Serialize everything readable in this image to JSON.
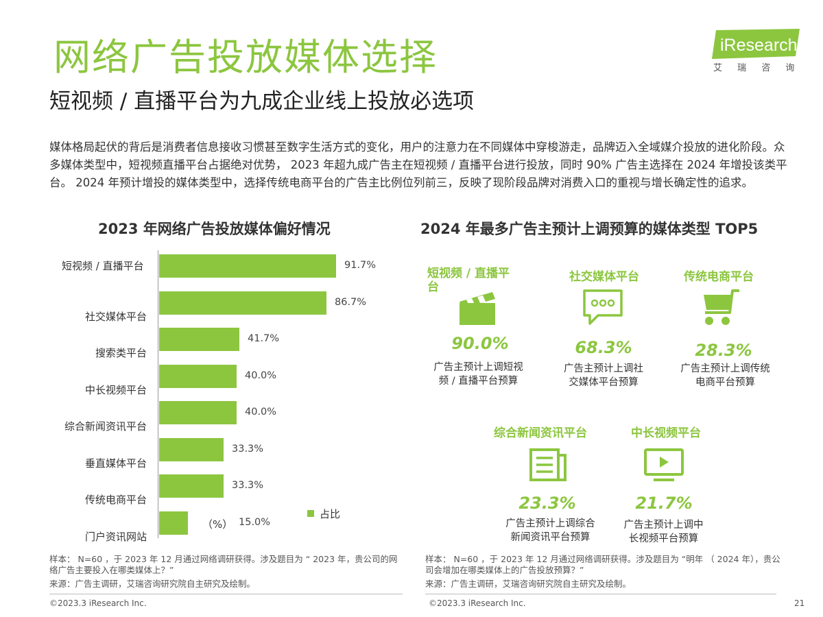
{
  "logo": {
    "brand": "iResearch",
    "cn": "艾 瑞 咨 询"
  },
  "header": {
    "title": "网络广告投放媒体选择",
    "subtitle": "短视频 / 直播平台为九成企业线上投放必选项",
    "intro": "媒体格局起伏的背后是消费者信息接收习惯甚至数字生活方式的变化，用户的注意力在不同媒体中穿梭游走，品牌迈入全域媒介投放的进化阶段。众多媒体类型中，短视频直播平台占据绝对优势， 2023 年超九成广告主在短视频 / 直播平台进行投放，同时 90% 广告主选择在 2024 年增投该类平台。 2024 年预计增投的媒体类型中，选择传统电商平台的广告主比例位列前三，反映了现阶段品牌对消费入口的重视与增长确定性的追求。"
  },
  "colors": {
    "accent": "#8cc63f"
  },
  "chart_data": {
    "type": "bar",
    "orientation": "horizontal",
    "title": "2023 年网络广告投放媒体偏好情况",
    "categories": [
      "短视频 / 直播平台",
      "社交媒体平台",
      "搜索类平台",
      "中长视频平台",
      "综合新闻资讯平台",
      "垂直媒体平台",
      "传统电商平台",
      "门户资讯网站"
    ],
    "values": [
      91.7,
      86.7,
      41.7,
      40.0,
      40.0,
      33.3,
      33.3,
      15.0
    ],
    "value_labels": [
      "91.7%",
      "86.7%",
      "41.7%",
      "40.0%",
      "40.0%",
      "33.3%",
      "33.3%",
      "15.0%"
    ],
    "series": [
      {
        "name": "占比",
        "values": [
          91.7,
          86.7,
          41.7,
          40.0,
          40.0,
          33.3,
          33.3,
          15.0
        ]
      }
    ],
    "unit": "（%）",
    "xlim": [
      0,
      100
    ],
    "grid": false,
    "legend": "bottom-right"
  },
  "top5": {
    "title": "2024 年最多广告主预计上调预算的媒体类型 TOP5",
    "items": [
      {
        "name": "短视频 / 直播平台",
        "pct": "90.0%",
        "desc1": "广告主预计上调短视",
        "desc2": "频 / 直播平台预算",
        "icon": "clapperboard-icon"
      },
      {
        "name": "社交媒体平台",
        "pct": "68.3%",
        "desc1": "广告主预计上调社",
        "desc2": "交媒体平台预算",
        "icon": "chat-bubble-icon"
      },
      {
        "name": "传统电商平台",
        "pct": "28.3%",
        "desc1": "广告主预计上调传统",
        "desc2": "电商平台预算",
        "icon": "shopping-cart-icon"
      },
      {
        "name": "综合新闻资讯平台",
        "pct": "23.3%",
        "desc1": "广告主预计上调综合",
        "desc2": "新闻资讯平台预算",
        "icon": "news-icon"
      },
      {
        "name": "中长视频平台",
        "pct": "21.7%",
        "desc1": "广告主预计上调中",
        "desc2": "长视频平台预算",
        "icon": "video-play-icon"
      }
    ]
  },
  "footnotes": {
    "left_sample": "样本： N=60 ，于 2023 年 12 月通过网络调研获得。涉及题目为 “ 2023 年，贵公司的网络广告主要投入在哪类媒体上？”",
    "left_source": "来源：广告主调研，艾瑞咨询研究院自主研究及绘制。",
    "right_sample": "样本： N=60 ，于 2023 年 12 月通过网络调研获得。涉及题目为 “明年 （ 2024 年），贵公司会增加在哪类媒体上的广告投放预算？”",
    "right_source": "来源：广告主调研，艾瑞咨询研究院自主研究及绘制。",
    "copyright_left": "©2023.3 iResearch Inc.",
    "copyright_right": "©2023.3 iResearch Inc.",
    "page_number": "21"
  }
}
